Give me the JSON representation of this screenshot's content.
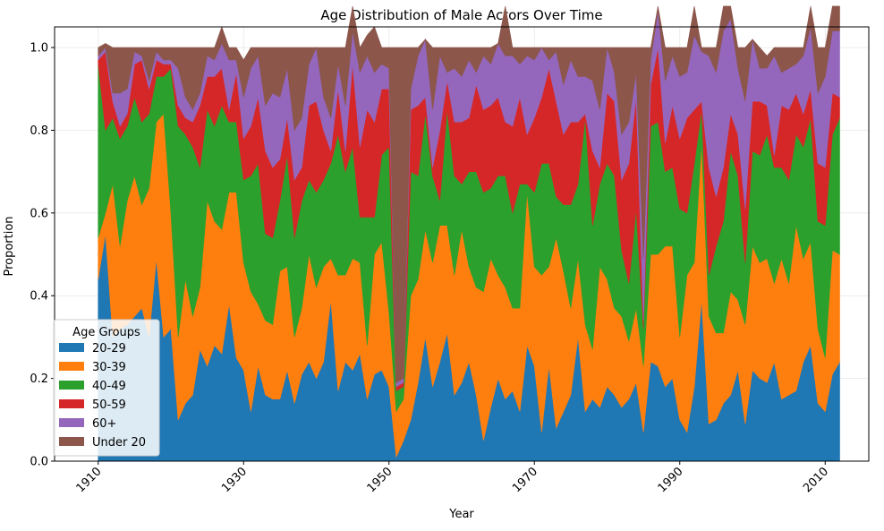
{
  "chart_data": {
    "type": "area",
    "stacked": true,
    "title": "Age Distribution of Male Actors Over Time",
    "xlabel": "Year",
    "ylabel": "Proportion",
    "xlim": [
      1904,
      2016
    ],
    "ylim": [
      0,
      1.05
    ],
    "xticks": [
      1910,
      1930,
      1950,
      1970,
      1990,
      2010
    ],
    "yticks": [
      "0.0",
      "0.2",
      "0.4",
      "0.6",
      "0.8",
      "1.0"
    ],
    "grid": true,
    "legend": {
      "title": "Age Groups",
      "position": "lower-left"
    },
    "x_start": 1910,
    "series": [
      {
        "name": "20-29",
        "color": "#1f77b4",
        "values": [
          0.44,
          0.55,
          0.3,
          0.32,
          0.33,
          0.35,
          0.37,
          0.3,
          0.49,
          0.3,
          0.32,
          0.1,
          0.14,
          0.16,
          0.27,
          0.23,
          0.28,
          0.26,
          0.38,
          0.25,
          0.22,
          0.12,
          0.23,
          0.16,
          0.15,
          0.15,
          0.22,
          0.14,
          0.21,
          0.24,
          0.2,
          0.24,
          0.39,
          0.17,
          0.24,
          0.22,
          0.26,
          0.15,
          0.21,
          0.22,
          0.18,
          0.01,
          0.05,
          0.1,
          0.19,
          0.3,
          0.18,
          0.24,
          0.31,
          0.16,
          0.19,
          0.24,
          0.16,
          0.05,
          0.13,
          0.2,
          0.15,
          0.17,
          0.12,
          0.28,
          0.23,
          0.07,
          0.23,
          0.08,
          0.12,
          0.16,
          0.3,
          0.12,
          0.15,
          0.13,
          0.18,
          0.16,
          0.13,
          0.15,
          0.19,
          0.07,
          0.24,
          0.23,
          0.18,
          0.2,
          0.1,
          0.07,
          0.18,
          0.39,
          0.09,
          0.1,
          0.14,
          0.16,
          0.22,
          0.09,
          0.22,
          0.2,
          0.19,
          0.24,
          0.15,
          0.16,
          0.17,
          0.24,
          0.28,
          0.14,
          0.12,
          0.21,
          0.24
        ]
      },
      {
        "name": "30-39",
        "color": "#ff7f0e",
        "values": [
          0.1,
          0.05,
          0.37,
          0.2,
          0.3,
          0.34,
          0.25,
          0.36,
          0.33,
          0.54,
          0.28,
          0.2,
          0.3,
          0.19,
          0.15,
          0.4,
          0.3,
          0.3,
          0.27,
          0.4,
          0.26,
          0.29,
          0.15,
          0.18,
          0.18,
          0.31,
          0.25,
          0.16,
          0.16,
          0.26,
          0.22,
          0.23,
          0.1,
          0.28,
          0.21,
          0.27,
          0.22,
          0.13,
          0.29,
          0.31,
          0.18,
          0.11,
          0.1,
          0.3,
          0.25,
          0.26,
          0.3,
          0.33,
          0.26,
          0.29,
          0.37,
          0.23,
          0.26,
          0.36,
          0.36,
          0.25,
          0.27,
          0.2,
          0.25,
          0.37,
          0.24,
          0.38,
          0.24,
          0.46,
          0.34,
          0.21,
          0.19,
          0.21,
          0.12,
          0.34,
          0.26,
          0.21,
          0.22,
          0.14,
          0.18,
          0.16,
          0.26,
          0.27,
          0.34,
          0.32,
          0.2,
          0.38,
          0.3,
          0.38,
          0.26,
          0.21,
          0.17,
          0.25,
          0.17,
          0.24,
          0.3,
          0.28,
          0.3,
          0.19,
          0.34,
          0.27,
          0.4,
          0.25,
          0.25,
          0.18,
          0.13,
          0.3,
          0.26
        ]
      },
      {
        "name": "40-49",
        "color": "#2ca02c",
        "values": [
          0.42,
          0.2,
          0.16,
          0.26,
          0.18,
          0.19,
          0.2,
          0.18,
          0.11,
          0.09,
          0.35,
          0.51,
          0.35,
          0.41,
          0.29,
          0.22,
          0.23,
          0.3,
          0.17,
          0.17,
          0.2,
          0.28,
          0.34,
          0.21,
          0.21,
          0.17,
          0.27,
          0.24,
          0.26,
          0.18,
          0.23,
          0.21,
          0.23,
          0.34,
          0.25,
          0.27,
          0.11,
          0.31,
          0.09,
          0.21,
          0.4,
          0.05,
          0.03,
          0.3,
          0.25,
          0.28,
          0.21,
          0.06,
          0.28,
          0.24,
          0.11,
          0.23,
          0.28,
          0.24,
          0.17,
          0.24,
          0.27,
          0.23,
          0.3,
          0.02,
          0.18,
          0.27,
          0.25,
          0.1,
          0.16,
          0.25,
          0.18,
          0.5,
          0.3,
          0.2,
          0.28,
          0.32,
          0.16,
          0.14,
          0.24,
          0.09,
          0.31,
          0.32,
          0.18,
          0.19,
          0.31,
          0.15,
          0.24,
          0.08,
          0.1,
          0.21,
          0.27,
          0.34,
          0.3,
          0.15,
          0.23,
          0.26,
          0.3,
          0.28,
          0.22,
          0.25,
          0.22,
          0.27,
          0.3,
          0.26,
          0.32,
          0.28,
          0.33
        ]
      },
      {
        "name": "50-59",
        "color": "#d62728",
        "values": [
          0.01,
          0.19,
          0.04,
          0.03,
          0.03,
          0.08,
          0.15,
          0.06,
          0.04,
          0.03,
          0.01,
          0.05,
          0.04,
          0.06,
          0.15,
          0.08,
          0.12,
          0.09,
          0.03,
          0.12,
          0.1,
          0.12,
          0.16,
          0.2,
          0.17,
          0.1,
          0.09,
          0.14,
          0.08,
          0.18,
          0.22,
          0.12,
          0.03,
          0.11,
          0.05,
          0.2,
          0.17,
          0.26,
          0.23,
          0.16,
          0.14,
          0.01,
          0.01,
          0.15,
          0.17,
          0.04,
          0.02,
          0.17,
          0.07,
          0.13,
          0.15,
          0.13,
          0.21,
          0.2,
          0.2,
          0.19,
          0.13,
          0.21,
          0.21,
          0.12,
          0.18,
          0.16,
          0.23,
          0.23,
          0.17,
          0.2,
          0.15,
          0.01,
          0.18,
          0.04,
          0.17,
          0.18,
          0.17,
          0.29,
          0.27,
          0.02,
          0.1,
          0.18,
          0.07,
          0.15,
          0.17,
          0.23,
          0.13,
          0.02,
          0.26,
          0.12,
          0.13,
          0.09,
          0.1,
          0.13,
          0.12,
          0.13,
          0.07,
          0.03,
          0.15,
          0.17,
          0.1,
          0.08,
          0.07,
          0.14,
          0.14,
          0.1,
          0.05
        ]
      },
      {
        "name": "60+",
        "color": "#9467bd",
        "values": [
          0.01,
          0.01,
          0.02,
          0.08,
          0.06,
          0.03,
          0.01,
          0.02,
          0.02,
          0.01,
          0.01,
          0.09,
          0.05,
          0.03,
          0.03,
          0.05,
          0.04,
          0.06,
          0.12,
          0.03,
          0.1,
          0.14,
          0.1,
          0.11,
          0.18,
          0.15,
          0.12,
          0.12,
          0.12,
          0.1,
          0.13,
          0.08,
          0.08,
          0.06,
          0.11,
          0.08,
          0.18,
          0.13,
          0.12,
          0.06,
          0.05,
          0.01,
          0.01,
          0.05,
          0.12,
          0.14,
          0.14,
          0.18,
          0.02,
          0.13,
          0.11,
          0.14,
          0.03,
          0.13,
          0.1,
          0.13,
          0.16,
          0.17,
          0.08,
          0.19,
          0.14,
          0.12,
          0.02,
          0.12,
          0.12,
          0.15,
          0.11,
          0.09,
          0.17,
          0.14,
          0.11,
          0.07,
          0.11,
          0.1,
          0.06,
          0.15,
          0.06,
          0.09,
          0.15,
          0.12,
          0.15,
          0.11,
          0.18,
          0.12,
          0.27,
          0.3,
          0.33,
          0.23,
          0.16,
          0.26,
          0.15,
          0.08,
          0.09,
          0.24,
          0.08,
          0.1,
          0.07,
          0.14,
          0.15,
          0.17,
          0.22,
          0.15,
          0.16
        ]
      },
      {
        "name": "Under 20",
        "color": "#8c564b",
        "values": [
          0.02,
          0.01,
          0.11,
          0.11,
          0.1,
          0.01,
          0.02,
          0.08,
          0.01,
          0.03,
          0.03,
          0.05,
          0.12,
          0.15,
          0.11,
          0.02,
          0.03,
          0.04,
          0.03,
          0.03,
          0.09,
          0.05,
          0.02,
          0.14,
          0.11,
          0.12,
          0.05,
          0.2,
          0.17,
          0.04,
          0.0,
          0.12,
          0.17,
          0.04,
          0.14,
          0.06,
          0.06,
          0.05,
          0.11,
          0.04,
          0.05,
          0.81,
          0.8,
          0.1,
          0.02,
          0.0,
          0.15,
          0.02,
          0.06,
          0.05,
          0.07,
          0.03,
          0.06,
          0.02,
          0.04,
          0.0,
          0.12,
          0.02,
          0.04,
          0.02,
          0.03,
          0.0,
          0.03,
          0.01,
          0.09,
          0.03,
          0.07,
          0.07,
          0.08,
          0.15,
          0.0,
          0.06,
          0.21,
          0.18,
          0.06,
          0.51,
          0.03,
          0.01,
          0.08,
          0.02,
          0.07,
          0.06,
          0.07,
          0.01,
          0.02,
          0.06,
          0.06,
          0.03,
          0.05,
          0.13,
          0.0,
          0.05,
          0.03,
          0.02,
          0.06,
          0.05,
          0.04,
          0.02,
          0.05,
          0.11,
          0.07,
          0.06,
          0.06
        ]
      }
    ]
  }
}
